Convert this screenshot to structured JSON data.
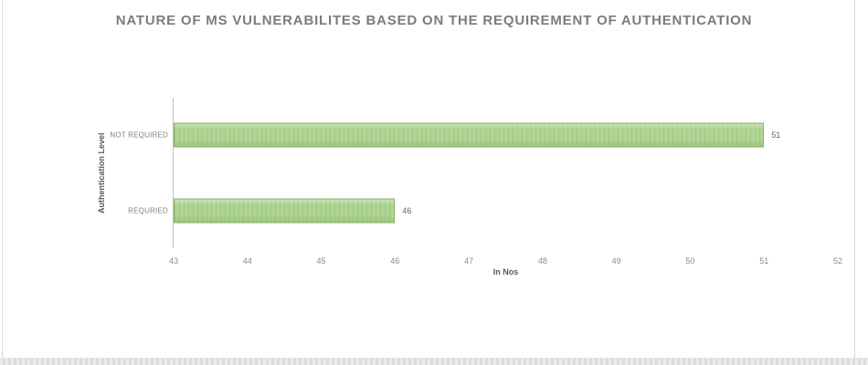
{
  "page": {
    "background": "#ffffff",
    "edge_line_color": "#d9d9d9",
    "bottom_strip_color": "#e0e0e0"
  },
  "chart_data": {
    "type": "bar",
    "orientation": "horizontal",
    "title": "NATURE OF MS VULNERABILITES BASED ON THE REQUIREMENT OF AUTHENTICATION",
    "categories": [
      "NOT REQUIRED",
      "REQURIED"
    ],
    "values": [
      51,
      46
    ],
    "data_labels": [
      "51",
      "46"
    ],
    "xlabel": "In Nos",
    "ylabel": "Authentication Level",
    "xlim": [
      43,
      52
    ],
    "xticks": [
      43,
      44,
      45,
      46,
      47,
      48,
      49,
      50,
      51,
      52
    ],
    "grid": false,
    "legend": false,
    "bar_color": "#a9d18e",
    "bar_border_color": "#84b563",
    "axis_line_color": "#c3c3c3",
    "title_color": "#7c7c7c",
    "tick_label_color": "#8a8a8a",
    "value_label_color": "#636363"
  }
}
